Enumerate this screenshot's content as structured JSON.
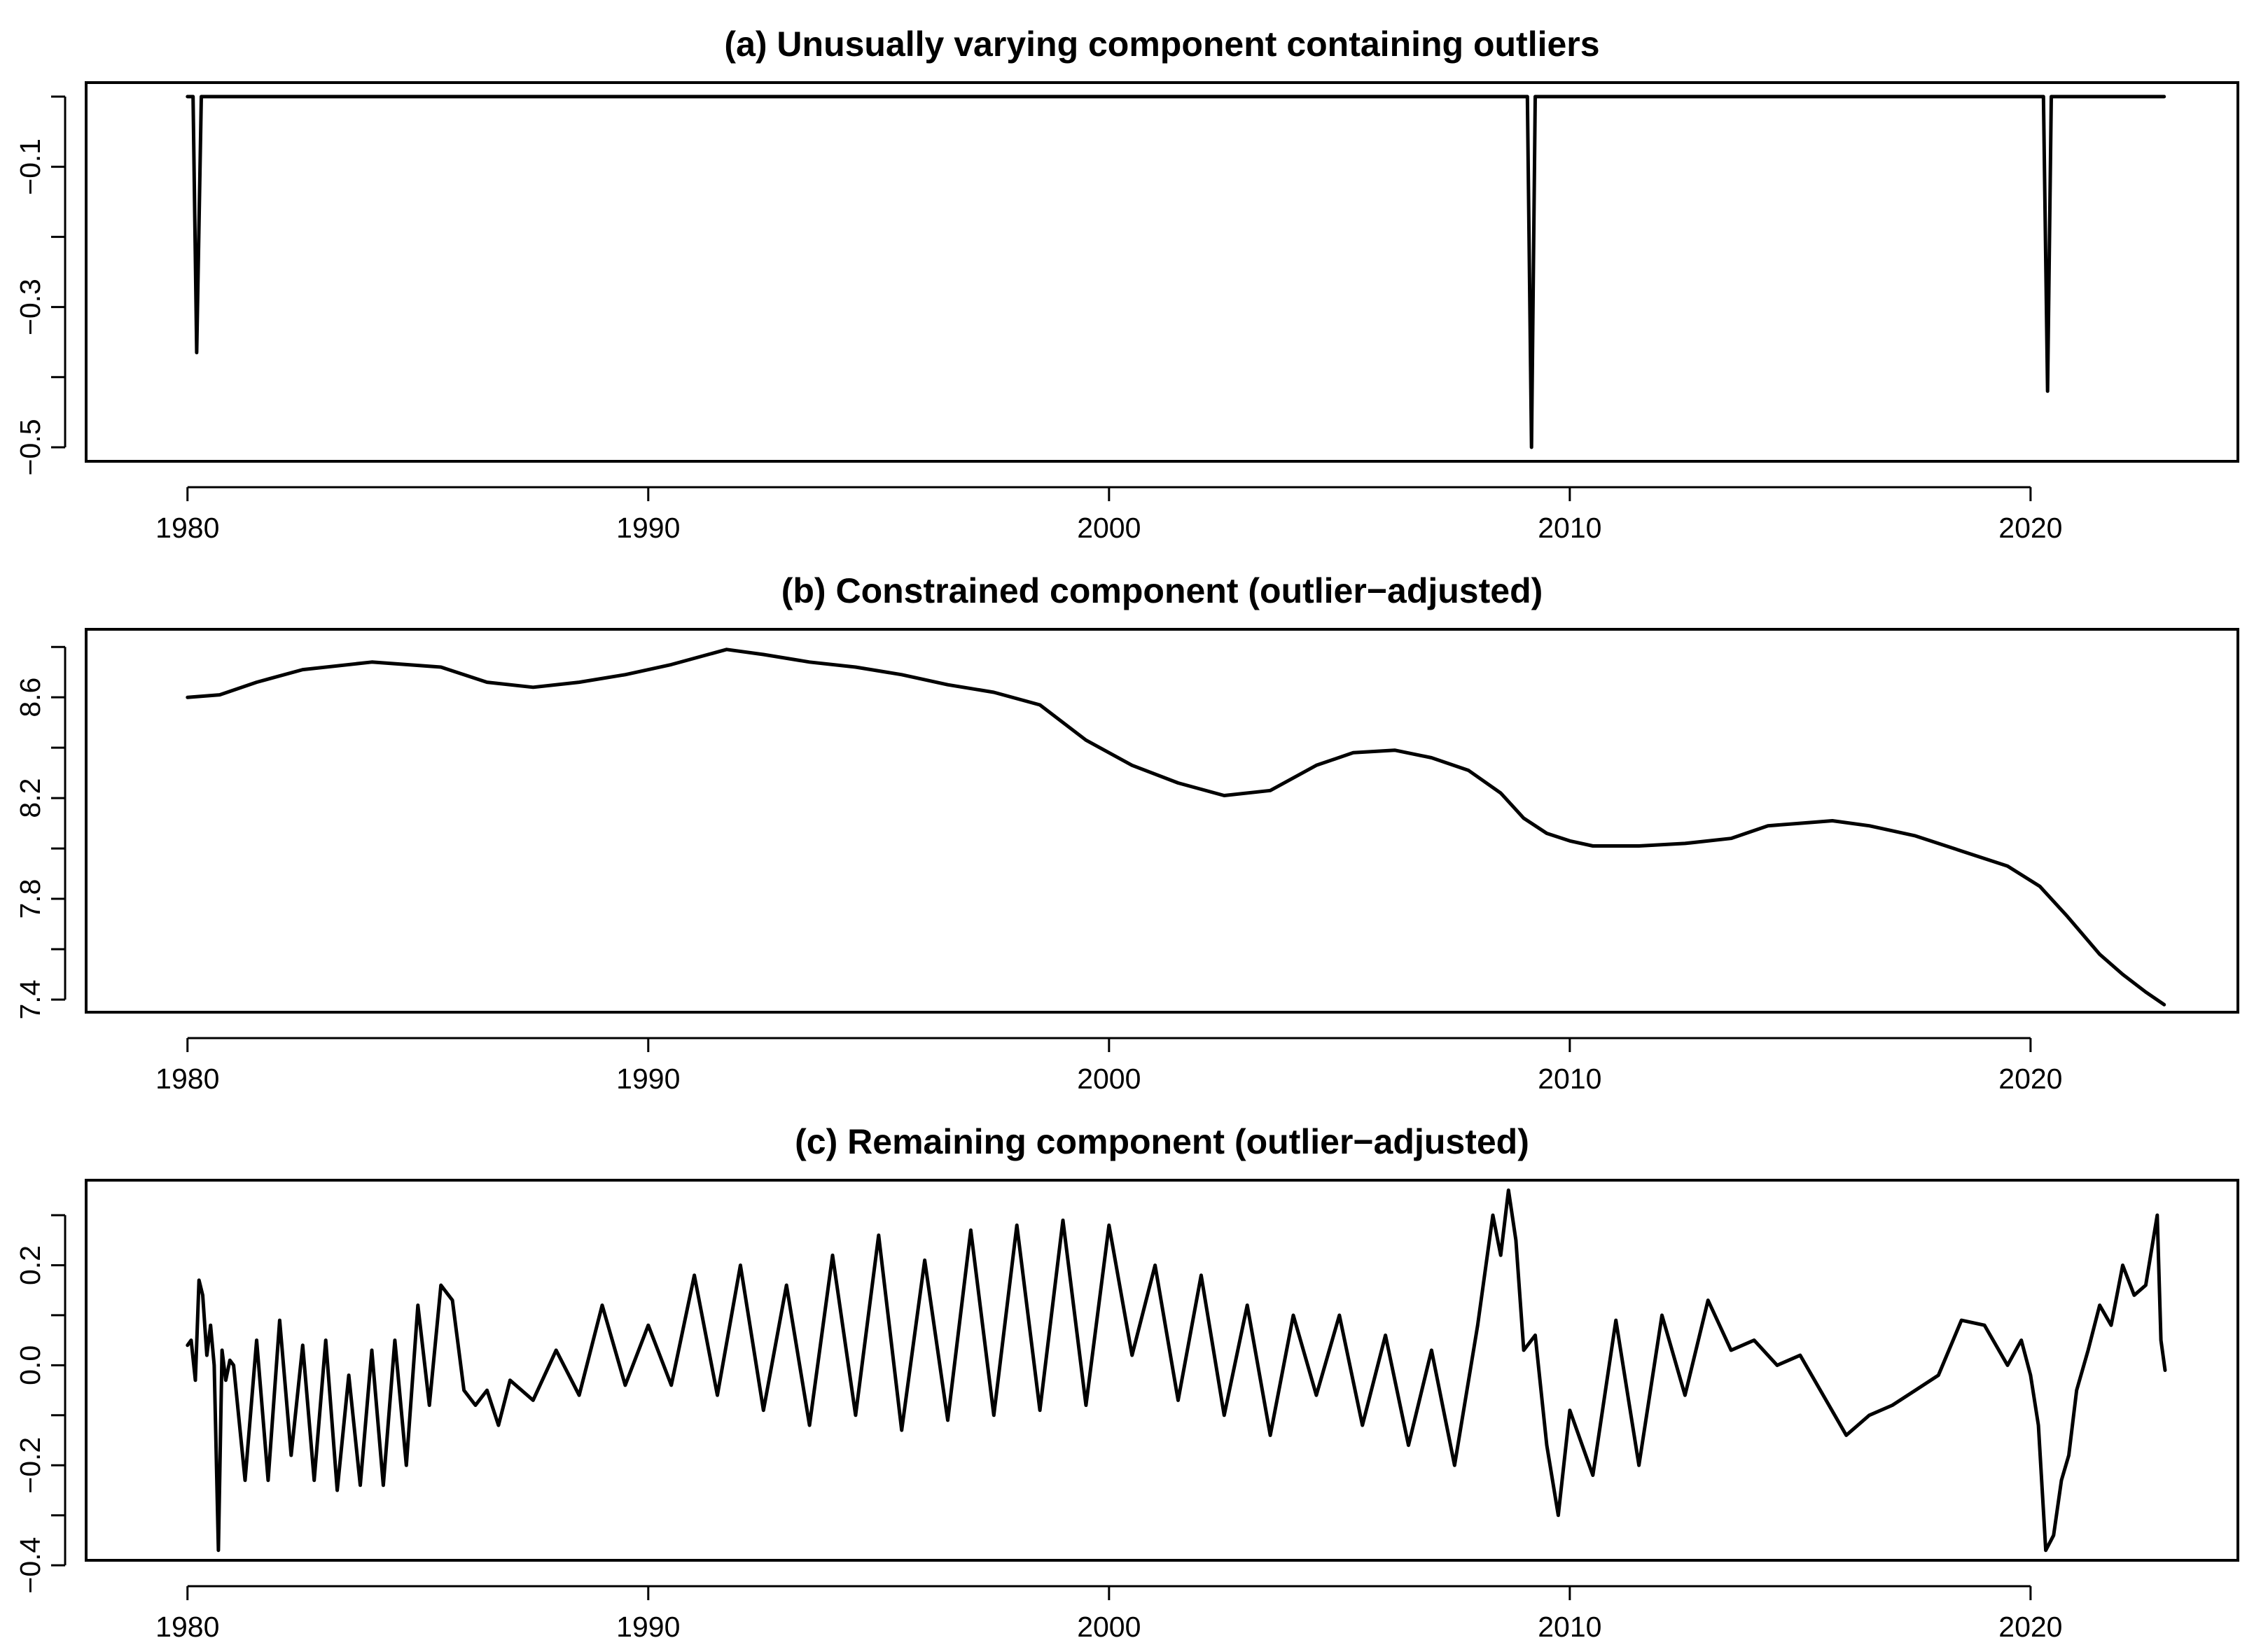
{
  "chart_data": [
    {
      "type": "line",
      "title": "(a) Unusually varying component containing outliers",
      "xlabel": "",
      "ylabel": "",
      "xlim": [
        1977.8,
        2024.5
      ],
      "ylim": [
        -0.52,
        0.02
      ],
      "xticks": [
        1980,
        1990,
        2000,
        2010,
        2020
      ],
      "xtick_labels": [
        "1980",
        "1990",
        "2000",
        "2010",
        "2020"
      ],
      "yticks": [
        -0.5,
        -0.4,
        -0.3,
        -0.2,
        -0.1,
        0.0
      ],
      "ytick_labels": [
        "−0.5",
        "",
        "−0.3",
        "",
        "−0.1",
        ""
      ],
      "x": [
        1980.0,
        1980.12,
        1980.2,
        1980.3,
        2009.0,
        2009.08,
        2009.17,
        2009.25,
        2020.2,
        2020.28,
        2020.37,
        2020.45,
        2022.9
      ],
      "values": [
        0.0,
        0.0,
        -0.365,
        0.0,
        0.0,
        0.0,
        -0.5,
        0.0,
        0.0,
        0.0,
        -0.42,
        0.0,
        0.0
      ]
    },
    {
      "type": "line",
      "title": "(b) Constrained component (outlier−adjusted)",
      "xlabel": "",
      "ylabel": "",
      "xlim": [
        1977.8,
        2024.5
      ],
      "ylim": [
        7.35,
        8.87
      ],
      "xticks": [
        1980,
        1990,
        2000,
        2010,
        2020
      ],
      "xtick_labels": [
        "1980",
        "1990",
        "2000",
        "2010",
        "2020"
      ],
      "yticks": [
        7.4,
        7.6,
        7.8,
        8.0,
        8.2,
        8.4,
        8.6,
        8.8
      ],
      "ytick_labels": [
        "7.4",
        "",
        "7.8",
        "",
        "8.2",
        "",
        "8.6",
        ""
      ],
      "x": [
        1980.0,
        1980.7,
        1981.5,
        1982.5,
        1984.0,
        1985.5,
        1986.5,
        1987.5,
        1988.5,
        1989.5,
        1990.5,
        1991.7,
        1992.5,
        1993.5,
        1994.5,
        1995.5,
        1996.5,
        1997.5,
        1998.5,
        1999.5,
        2000.5,
        2001.5,
        2002.5,
        2003.5,
        2004.5,
        2005.3,
        2006.2,
        2007.0,
        2007.8,
        2008.5,
        2009.0,
        2009.5,
        2010.0,
        2010.5,
        2011.5,
        2012.5,
        2013.5,
        2014.3,
        2015.0,
        2015.7,
        2016.5,
        2017.5,
        2018.5,
        2019.5,
        2020.2,
        2020.8,
        2021.5,
        2022.0,
        2022.5,
        2022.9
      ],
      "values": [
        8.6,
        8.61,
        8.66,
        8.71,
        8.74,
        8.72,
        8.66,
        8.64,
        8.66,
        8.69,
        8.73,
        8.79,
        8.77,
        8.74,
        8.72,
        8.69,
        8.65,
        8.62,
        8.57,
        8.43,
        8.33,
        8.26,
        8.21,
        8.23,
        8.33,
        8.38,
        8.39,
        8.36,
        8.31,
        8.22,
        8.12,
        8.06,
        8.03,
        8.01,
        8.01,
        8.02,
        8.04,
        8.09,
        8.1,
        8.11,
        8.09,
        8.05,
        7.99,
        7.93,
        7.85,
        7.73,
        7.58,
        7.5,
        7.43,
        7.38
      ]
    },
    {
      "type": "line",
      "title": "(c) Remaining component (outlier−adjusted)",
      "xlabel": "",
      "ylabel": "",
      "xlim": [
        1977.8,
        2024.5
      ],
      "ylim": [
        -0.39,
        0.37
      ],
      "xticks": [
        1980,
        1990,
        2000,
        2010,
        2020
      ],
      "xtick_labels": [
        "1980",
        "1990",
        "2000",
        "2010",
        "2020"
      ],
      "yticks": [
        -0.4,
        -0.3,
        -0.2,
        -0.1,
        0.0,
        0.1,
        0.2,
        0.3
      ],
      "ytick_labels": [
        "−0.4",
        "",
        "−0.2",
        "",
        "0.0",
        "",
        "0.2",
        ""
      ],
      "x": [
        1980.0,
        1980.08,
        1980.17,
        1980.25,
        1980.33,
        1980.42,
        1980.5,
        1980.58,
        1980.67,
        1980.75,
        1980.83,
        1980.92,
        1981.0,
        1981.25,
        1981.5,
        1981.75,
        1982.0,
        1982.25,
        1982.5,
        1982.75,
        1983.0,
        1983.25,
        1983.5,
        1983.75,
        1984.0,
        1984.25,
        1984.5,
        1984.75,
        1985.0,
        1985.25,
        1985.5,
        1985.75,
        1986.0,
        1986.25,
        1986.5,
        1986.75,
        1987.0,
        1987.5,
        1988.0,
        1988.5,
        1989.0,
        1989.5,
        1990.0,
        1990.5,
        1991.0,
        1991.5,
        1992.0,
        1992.5,
        1993.0,
        1993.5,
        1994.0,
        1994.5,
        1995.0,
        1995.5,
        1996.0,
        1996.5,
        1997.0,
        1997.5,
        1998.0,
        1998.5,
        1999.0,
        1999.5,
        2000.0,
        2000.5,
        2001.0,
        2001.5,
        2002.0,
        2002.5,
        2003.0,
        2003.5,
        2004.0,
        2004.5,
        2005.0,
        2005.5,
        2006.0,
        2006.5,
        2007.0,
        2007.5,
        2008.0,
        2008.33,
        2008.5,
        2008.67,
        2008.83,
        2009.0,
        2009.25,
        2009.5,
        2009.75,
        2010.0,
        2010.5,
        2011.0,
        2011.5,
        2012.0,
        2012.5,
        2013.0,
        2013.5,
        2014.0,
        2014.5,
        2015.0,
        2015.5,
        2016.0,
        2016.5,
        2017.0,
        2017.5,
        2018.0,
        2018.5,
        2019.0,
        2019.5,
        2019.8,
        2020.0,
        2020.17,
        2020.33,
        2020.5,
        2020.67,
        2020.83,
        2021.0,
        2021.25,
        2021.5,
        2021.75,
        2022.0,
        2022.25,
        2022.5,
        2022.75,
        2022.83,
        2022.92
      ],
      "values": [
        0.04,
        0.05,
        -0.03,
        0.17,
        0.14,
        0.02,
        0.08,
        0.0,
        -0.37,
        0.03,
        -0.03,
        0.01,
        0.0,
        -0.23,
        0.05,
        -0.23,
        0.09,
        -0.18,
        0.04,
        -0.23,
        0.05,
        -0.25,
        -0.02,
        -0.24,
        0.03,
        -0.24,
        0.05,
        -0.2,
        0.12,
        -0.08,
        0.16,
        0.13,
        -0.05,
        -0.08,
        -0.05,
        -0.12,
        -0.03,
        -0.07,
        0.03,
        -0.06,
        0.12,
        -0.04,
        0.08,
        -0.04,
        0.18,
        -0.06,
        0.2,
        -0.09,
        0.16,
        -0.12,
        0.22,
        -0.1,
        0.26,
        -0.13,
        0.21,
        -0.11,
        0.27,
        -0.1,
        0.28,
        -0.09,
        0.29,
        -0.08,
        0.28,
        0.02,
        0.2,
        -0.07,
        0.18,
        -0.1,
        0.12,
        -0.14,
        0.1,
        -0.06,
        0.1,
        -0.12,
        0.06,
        -0.16,
        0.03,
        -0.2,
        0.08,
        0.3,
        0.22,
        0.35,
        0.25,
        0.03,
        0.06,
        -0.16,
        -0.3,
        -0.09,
        -0.22,
        0.09,
        -0.2,
        0.1,
        -0.06,
        0.13,
        0.03,
        0.05,
        0.0,
        0.02,
        -0.06,
        -0.14,
        -0.1,
        -0.08,
        -0.05,
        -0.02,
        0.09,
        0.08,
        0.0,
        0.05,
        -0.02,
        -0.12,
        -0.37,
        -0.34,
        -0.23,
        -0.18,
        -0.05,
        0.03,
        0.12,
        0.08,
        0.2,
        0.14,
        0.16,
        0.3,
        0.05,
        -0.01
      ]
    }
  ]
}
